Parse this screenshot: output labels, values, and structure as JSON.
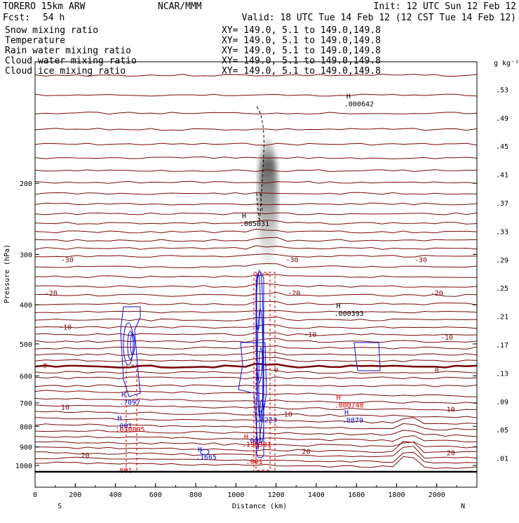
{
  "header": {
    "model": "TORERO  15km ARW",
    "org": "NCAR/MMM",
    "init": "Init: 12 UTC Sun 12 Feb 12",
    "fcst_label": "Fcst:",
    "fcst_value": "54 h",
    "valid": "Valid: 18 UTC Tue 14 Feb 12 (12 CST Tue 14 Feb 12)"
  },
  "legend": [
    {
      "name": "Snow mixing ratio",
      "xy": "XY= 149.0,  5.1 to 149.0,149.8",
      "color": "#000000"
    },
    {
      "name": "Temperature",
      "xy": "XY= 149.0,  5.1 to 149.0,149.8",
      "color": "#8b0000"
    },
    {
      "name": "Rain water mixing ratio",
      "xy": "XY= 149.0,  5.1 to 149.0,149.8",
      "color": "#e00000"
    },
    {
      "name": "Cloud water mixing ratio",
      "xy": "XY= 149.0,  5.1 to 149.0,149.8",
      "color": "#0000cc"
    },
    {
      "name": "Cloud ice mixing ratio",
      "xy": "XY= 149.0,  5.1 to 149.0,149.8",
      "color": "#000000"
    }
  ],
  "colors": {
    "temp": "#7a0a0a",
    "rain": "#e00000",
    "cloud": "#1111cc",
    "ice": "#000000"
  },
  "chart_data": {
    "type": "cross-section",
    "xlabel": "Distance (km)",
    "ylabel": "Pressure (hPa)",
    "xlim": [
      0,
      2200
    ],
    "ylim": [
      1050,
      100
    ],
    "yscale": "log",
    "x_ticks": [
      0,
      200,
      400,
      600,
      800,
      1000,
      1200,
      1400,
      1600,
      1800,
      2000
    ],
    "y_ticks": [
      200,
      300,
      400,
      500,
      600,
      700,
      800,
      900,
      1000
    ],
    "x_end_labels": {
      "left": "S",
      "right": "N"
    },
    "colorbar": {
      "unit": "g kg⁻¹",
      "ticks": [
        ".53",
        ".49",
        ".45",
        ".41",
        ".37",
        ".33",
        ".29",
        ".25",
        ".21",
        ".17",
        ".13",
        ".09",
        ".05",
        ".01"
      ]
    },
    "temperature_labels": [
      {
        "text": "-30",
        "x": 160,
        "p": 310
      },
      {
        "text": "-30",
        "x": 1280,
        "p": 310
      },
      {
        "text": "-30",
        "x": 1920,
        "p": 310
      },
      {
        "text": "-20",
        "x": 80,
        "p": 375
      },
      {
        "text": "-20",
        "x": 1290,
        "p": 375
      },
      {
        "text": "-20",
        "x": 2000,
        "p": 375
      },
      {
        "text": "-10",
        "x": 150,
        "p": 455
      },
      {
        "text": "-10",
        "x": 1370,
        "p": 475
      },
      {
        "text": "-10",
        "x": 2050,
        "p": 482
      },
      {
        "text": "0",
        "x": 50,
        "p": 567
      },
      {
        "text": "0",
        "x": 1200,
        "p": 581
      },
      {
        "text": "0",
        "x": 2000,
        "p": 582
      },
      {
        "text": "10",
        "x": 150,
        "p": 718
      },
      {
        "text": "10",
        "x": 1260,
        "p": 748
      },
      {
        "text": "10",
        "x": 2070,
        "p": 728
      },
      {
        "text": "20",
        "x": 250,
        "p": 945
      },
      {
        "text": "20",
        "x": 1350,
        "p": 925
      },
      {
        "text": "20",
        "x": 2070,
        "p": 932
      }
    ],
    "extrema": [
      {
        "mark": "H",
        "value": ".000642",
        "x": 1550,
        "p": 128,
        "series": "ice"
      },
      {
        "mark": "H",
        "value": ".005031",
        "x": 1030,
        "p": 253,
        "series": "ice"
      },
      {
        "mark": "H",
        "value": ".000393",
        "x": 1500,
        "p": 423,
        "series": "ice"
      },
      {
        "mark": "H",
        "value": ".7097",
        "x": 430,
        "p": 702,
        "series": "cloud"
      },
      {
        "mark": "H",
        "value": ".000748",
        "x": 1500,
        "p": 713,
        "series": "rain"
      },
      {
        "mark": "H",
        "value": ".6223",
        "x": 1110,
        "p": 775,
        "series": "cloud"
      },
      {
        "mark": "H",
        "value": ".0879",
        "x": 1540,
        "p": 777,
        "series": "cloud"
      },
      {
        "mark": "H",
        "value": ".001",
        "x": 410,
        "p": 803,
        "series": "cloud"
      },
      {
        "mark": "",
        "value": ".030895",
        "x": 410,
        "p": 818,
        "series": "rain"
      },
      {
        "mark": "",
        "value": ".001",
        "x": 1060,
        "p": 873,
        "series": "cloud"
      },
      {
        "mark": "H",
        "value": ".198381",
        "x": 1040,
        "p": 892,
        "series": "rain"
      },
      {
        "mark": "H",
        "value": ".1665",
        "x": 810,
        "p": 958,
        "series": "cloud"
      },
      {
        "mark": "",
        "value": ".001",
        "x": 1060,
        "p": 985,
        "series": "rain"
      },
      {
        "mark": "",
        "value": ".001",
        "x": 410,
        "p": 1035,
        "series": "rain"
      }
    ]
  }
}
